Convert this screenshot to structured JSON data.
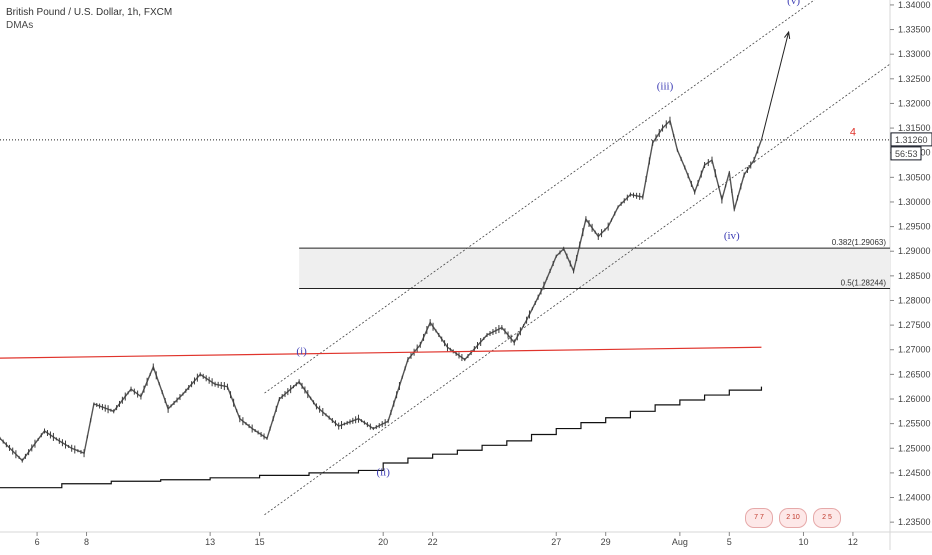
{
  "header": {
    "title": "British Pound / U.S. Dollar, 1h, FXCM",
    "indicator": "DMAs"
  },
  "price_scale": {
    "current_price": "1.31260",
    "countdown": "56:53",
    "accent": "#131722"
  },
  "footer_icons": [
    {
      "name": "calendar-event-icon",
      "label": "7 7"
    },
    {
      "name": "calendar-event-icon",
      "label": "2 10"
    },
    {
      "name": "calendar-event-icon",
      "label": "2 5"
    }
  ],
  "chart_data": {
    "type": "line",
    "title": "British Pound / U.S. Dollar, 1h, FXCM",
    "ylim": [
      1.233,
      1.341
    ],
    "y_ticks": [
      "1.23500",
      "1.24000",
      "1.24500",
      "1.25000",
      "1.25500",
      "1.26000",
      "1.26500",
      "1.27000",
      "1.27500",
      "1.28000",
      "1.28500",
      "1.29000",
      "1.29500",
      "1.30000",
      "1.30500",
      "1.31000",
      "1.31500",
      "1.32000",
      "1.32500",
      "1.33000",
      "1.33500",
      "1.34000"
    ],
    "x_ticks": [
      {
        "label": "6",
        "t": 6
      },
      {
        "label": "8",
        "t": 8
      },
      {
        "label": "13",
        "t": 13
      },
      {
        "label": "15",
        "t": 15
      },
      {
        "label": "20",
        "t": 20
      },
      {
        "label": "22",
        "t": 22
      },
      {
        "label": "27",
        "t": 27
      },
      {
        "label": "29",
        "t": 29
      },
      {
        "label": "Aug",
        "t": 32
      },
      {
        "label": "5",
        "t": 34
      },
      {
        "label": "10",
        "t": 37
      },
      {
        "label": "12",
        "t": 39
      }
    ],
    "xlim": [
      4.5,
      40.5
    ],
    "series": [
      {
        "role": "price",
        "color": "#555555",
        "x": [
          4.5,
          5.4,
          6.3,
          6.9,
          7.4,
          7.9,
          8.3,
          9.1,
          9.8,
          10.2,
          10.7,
          11.3,
          11.9,
          12.6,
          13.2,
          13.7,
          14.2,
          14.7,
          15.3,
          15.8,
          16.6,
          17.3,
          18.2,
          19.0,
          19.6,
          20.2,
          21.0,
          21.5,
          21.9,
          22.6,
          23.3,
          24.2,
          24.8,
          25.3,
          25.8,
          26.5,
          27.0,
          27.3,
          27.7,
          28.2,
          28.7,
          29.1,
          29.5,
          30.0,
          30.5,
          30.9,
          31.3,
          31.6,
          31.9,
          32.2,
          32.6,
          33.0,
          33.3,
          33.7,
          34.0,
          34.2,
          34.6,
          35.0,
          35.3
        ],
        "y": [
          1.252,
          1.2475,
          1.2535,
          1.2515,
          1.25,
          1.249,
          1.259,
          1.2575,
          1.262,
          1.2605,
          1.2665,
          1.258,
          1.261,
          1.265,
          1.263,
          1.2625,
          1.256,
          1.254,
          1.252,
          1.26,
          1.2635,
          1.2585,
          1.2545,
          1.256,
          1.254,
          1.2555,
          1.268,
          1.271,
          1.2755,
          1.2705,
          1.268,
          1.273,
          1.2745,
          1.2715,
          1.276,
          1.283,
          1.289,
          1.2905,
          1.286,
          1.2965,
          1.293,
          1.295,
          1.299,
          1.3015,
          1.301,
          1.312,
          1.315,
          1.3165,
          1.3105,
          1.307,
          1.302,
          1.3075,
          1.3085,
          1.3005,
          1.306,
          1.2985,
          1.3055,
          1.3085,
          1.3126
        ]
      },
      {
        "role": "dma-black",
        "color": "#111111",
        "x": [
          4.5,
          7.0,
          9.0,
          11.0,
          13.0,
          15.0,
          17.0,
          19.0,
          20.0,
          21.0,
          22.0,
          23.0,
          24.0,
          25.0,
          26.0,
          27.0,
          28.0,
          29.0,
          30.0,
          31.0,
          32.0,
          33.0,
          34.0,
          35.3
        ],
        "y": [
          1.242,
          1.2428,
          1.2433,
          1.2436,
          1.244,
          1.2445,
          1.245,
          1.2455,
          1.247,
          1.248,
          1.2488,
          1.2496,
          1.2506,
          1.2515,
          1.2528,
          1.254,
          1.2552,
          1.2562,
          1.2575,
          1.2588,
          1.2598,
          1.2608,
          1.2618,
          1.2625
        ]
      },
      {
        "role": "dma-red",
        "color": "#e0342c",
        "x": [
          4.5,
          35.3
        ],
        "y": [
          1.2683,
          1.2705
        ]
      }
    ],
    "annotations": {
      "horizontal_line": {
        "y": 1.3126,
        "style": "dotted"
      },
      "fib_zone": {
        "x_start": 16.6,
        "y_top": 1.29063,
        "y_bottom": 1.28244,
        "labels": [
          "0.382(1.29063)",
          "0.5(1.28244)"
        ]
      },
      "channel_upper": {
        "x": [
          15.2,
          40.5
        ],
        "y": [
          1.2612,
          1.352
        ]
      },
      "channel_lower": {
        "x": [
          15.2,
          40.5
        ],
        "y": [
          1.2365,
          1.328
        ]
      },
      "projection_arrow": {
        "x": [
          35.3,
          36.4
        ],
        "y": [
          1.3126,
          1.3345
        ]
      },
      "waves": [
        {
          "label": "(i)",
          "x": 16.7,
          "y": 1.269
        },
        {
          "label": "(ii)",
          "x": 20.0,
          "y": 1.2445
        },
        {
          "label": "(iii)",
          "x": 31.4,
          "y": 1.3228
        },
        {
          "label": "(iv)",
          "x": 34.1,
          "y": 1.2925
        },
        {
          "label": "(v)",
          "x": 36.6,
          "y": 1.3402
        }
      ],
      "marker": {
        "label": "4",
        "x": 39.0,
        "y": 1.3135,
        "color": "#e0342c"
      }
    }
  }
}
